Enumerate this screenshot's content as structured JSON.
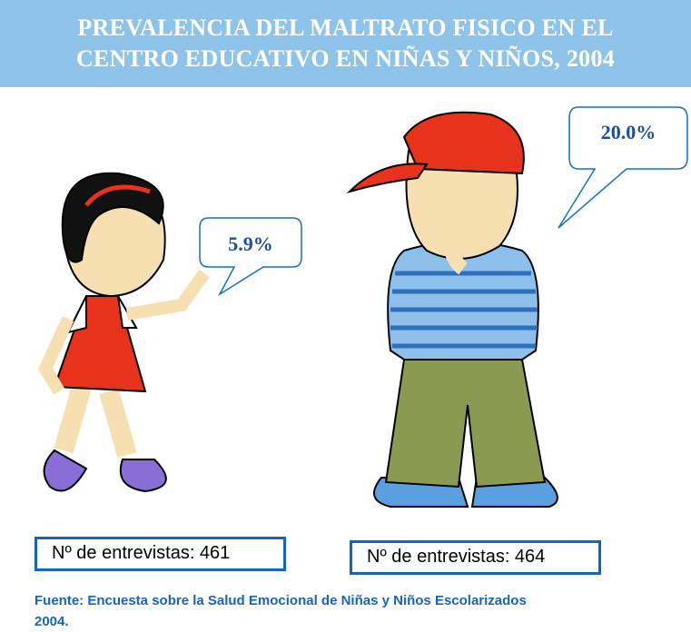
{
  "title": {
    "lines": [
      "PREVALENCIA DEL MALTRATO FISICO EN EL",
      "CENTRO EDUCATIVO EN NIÑAS Y NIÑOS, 2004"
    ]
  },
  "girl": {
    "percent": "5.9%",
    "interviews": "Nº de entrevistas: 461"
  },
  "boy": {
    "percent": "20.0%",
    "interviews": "Nº de entrevistas: 464"
  },
  "source": {
    "lines": [
      "Fuente: Encuesta sobre la Salud Emocional de Niñas y Niños Escolarizados",
      "2004."
    ]
  }
}
